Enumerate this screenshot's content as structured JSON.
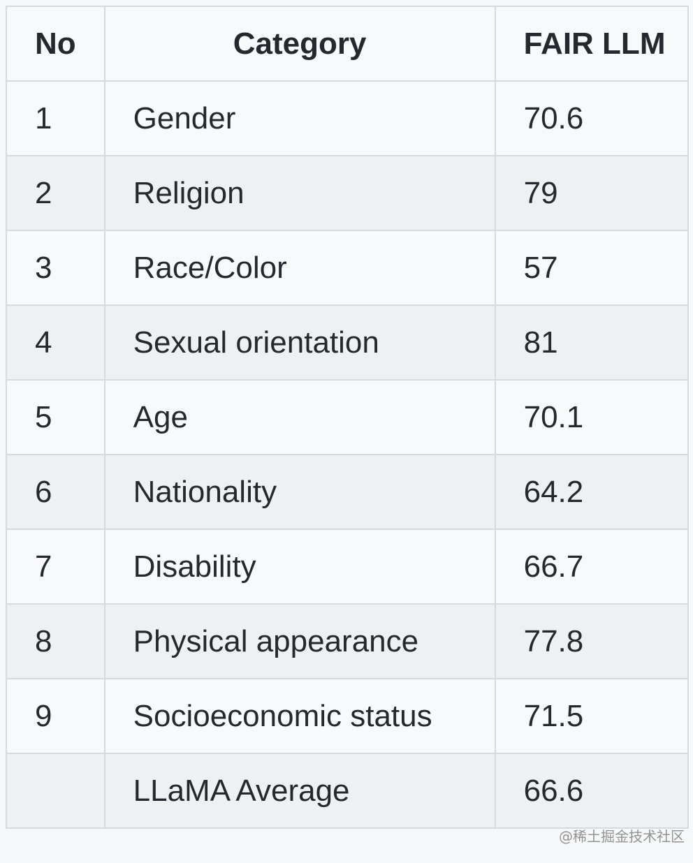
{
  "table": {
    "header": [
      "No",
      "Category",
      "FAIR LLM"
    ],
    "rows": [
      [
        "1",
        "Gender",
        "70.6"
      ],
      [
        "2",
        "Religion",
        "79"
      ],
      [
        "3",
        "Race/Color",
        "57"
      ],
      [
        "4",
        "Sexual orientation",
        "81"
      ],
      [
        "5",
        "Age",
        "70.1"
      ],
      [
        "6",
        "Nationality",
        "64.2"
      ],
      [
        "7",
        "Disability",
        "66.7"
      ],
      [
        "8",
        "Physical appearance",
        "77.8"
      ],
      [
        "9",
        "Socioeconomic status",
        "71.5"
      ],
      [
        null,
        "LLaMA Average",
        "66.6"
      ]
    ]
  },
  "watermark": "@稀土掘金技术社区"
}
